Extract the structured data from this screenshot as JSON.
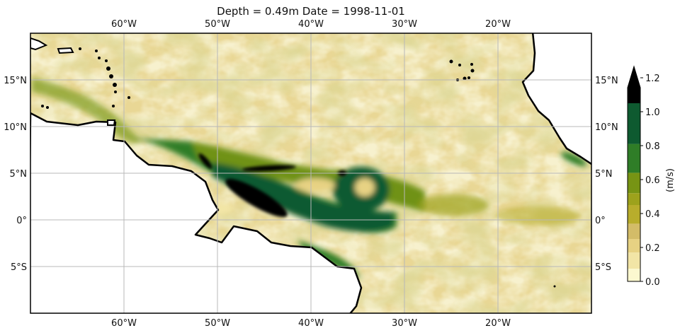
{
  "title": "Depth = 0.49m  Date = 1998-11-01",
  "map": {
    "extent_lon": [
      -70,
      -10
    ],
    "extent_lat": [
      -10,
      20
    ],
    "lon_ticks": [
      -60,
      -50,
      -40,
      -30,
      -20
    ],
    "lon_labels": [
      "60°W",
      "50°W",
      "40°W",
      "30°W",
      "20°W"
    ],
    "lat_ticks": [
      15,
      10,
      5,
      0,
      -5
    ],
    "lat_labels": [
      "15°N",
      "10°N",
      "5°N",
      "0°",
      "5°S"
    ],
    "gridlines": true,
    "land_color": "#ffffff",
    "coastline_color": "#000000",
    "grid_color": "#b8b8b8"
  },
  "colorbar": {
    "label": "(m/s)",
    "tick_values": [
      0.0,
      0.2,
      0.4,
      0.6,
      0.8,
      1.0,
      1.2
    ],
    "tick_labels": [
      "0.0",
      "0.2",
      "0.4",
      "0.6",
      "0.8",
      "1.0",
      "1.2"
    ],
    "extend": "max",
    "bands": [
      {
        "from": 0.0,
        "to": 0.075,
        "color": "#fcf8cf"
      },
      {
        "from": 0.075,
        "to": 0.17,
        "color": "#f2e5a6"
      },
      {
        "from": 0.17,
        "to": 0.25,
        "color": "#e7d283"
      },
      {
        "from": 0.25,
        "to": 0.34,
        "color": "#d3bc68"
      },
      {
        "from": 0.34,
        "to": 0.45,
        "color": "#b8ad2c"
      },
      {
        "from": 0.45,
        "to": 0.52,
        "color": "#9da21c"
      },
      {
        "from": 0.52,
        "to": 0.64,
        "color": "#779414"
      },
      {
        "from": 0.64,
        "to": 0.81,
        "color": "#2f7d27"
      },
      {
        "from": 0.81,
        "to": 1.05,
        "color": "#0e5a30"
      },
      {
        "from": 1.05,
        "to": 1.2,
        "color": "#000000"
      }
    ]
  }
}
